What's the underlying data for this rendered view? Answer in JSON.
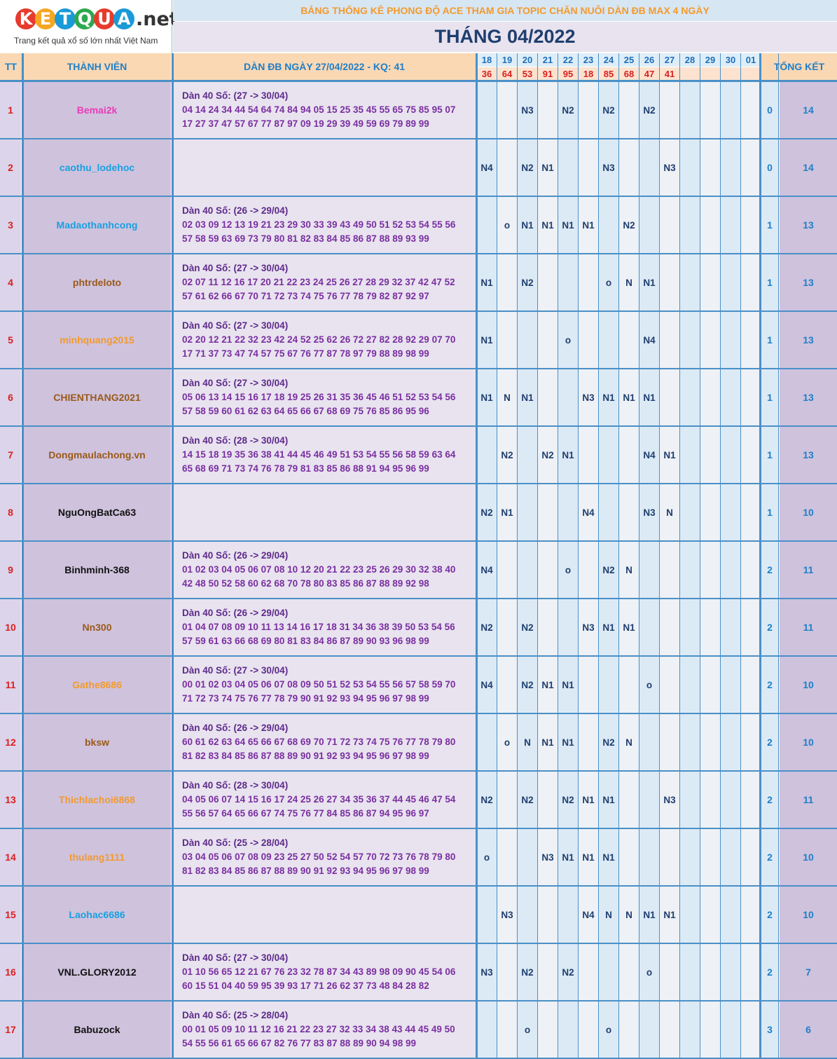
{
  "logo": {
    "letters": [
      "K",
      "E",
      "T",
      "Q",
      "U",
      "A"
    ],
    "letter_colors": [
      "#e63b2e",
      "#f5a623",
      "#1a9ad6",
      "#2fa84f",
      "#e63b2e",
      "#1a9ad6"
    ],
    "suffix": ".net",
    "tagline": "Trang kết quả xổ số lớn nhất Việt Nam"
  },
  "title": "BẢNG THỐNG KÊ PHONG ĐỘ ACE THAM GIA TOPIC CHĂN NUÔI DÀN ĐB MAX 4 NGÀY",
  "month": "THÁNG 04/2022",
  "headers": {
    "tt": "TT",
    "member": "THÀNH VIÊN",
    "dan": "DÀN ĐB NGÀY 27/04/2022 - KQ: 41",
    "summary": "TỔNG KẾT"
  },
  "days": [
    "18",
    "19",
    "20",
    "21",
    "22",
    "23",
    "24",
    "25",
    "26",
    "27",
    "28",
    "29",
    "30",
    "01"
  ],
  "results": [
    "36",
    "64",
    "53",
    "91",
    "95",
    "18",
    "85",
    "68",
    "47",
    "41",
    "",
    "",
    "",
    ""
  ],
  "colors": {
    "accent_blue": "#4a90c8",
    "title_orange": "#f39a2d",
    "month_navy": "#1f3e6e",
    "tt_red": "#d92020",
    "dan_purple": "#7a2fa0"
  },
  "rows": [
    {
      "tt": "1",
      "name": "Bemai2k",
      "name_color": "#e83cb6",
      "dan_head": "Dàn 40 Số: (27 -> 30/04)",
      "dan_line1": "04 14 24 34 44 54 64 74 84 94 05 15 25 35 45 55 65 75 85 95 07",
      "dan_line2": "17 27 37 47 57 67 77 87 97 09 19 29 39 49 59 69 79 89 99",
      "marks": [
        "",
        "",
        "N3",
        "",
        "N2",
        "",
        "N2",
        "",
        "N2",
        "",
        "",
        "",
        "",
        ""
      ],
      "a": "0",
      "b": "14"
    },
    {
      "tt": "2",
      "name": "caothu_lodehoc",
      "name_color": "#1aa0e0",
      "dan_head": "",
      "dan_line1": "",
      "dan_line2": "",
      "marks": [
        "N4",
        "",
        "N2",
        "N1",
        "",
        "",
        "N3",
        "",
        "",
        "N3",
        "",
        "",
        "",
        ""
      ],
      "a": "0",
      "b": "14"
    },
    {
      "tt": "3",
      "name": "Madaothanhcong",
      "name_color": "#1aa0e0",
      "dan_head": "Dàn 40 Số: (26 -> 29/04)",
      "dan_line1": "02 03 09 12 13 19 21 23 29 30 33 39 43 49 50 51 52 53 54 55 56",
      "dan_line2": "57 58 59 63 69 73 79 80 81 82 83 84 85 86 87 88 89 93 99",
      "marks": [
        "",
        "o",
        "N1",
        "N1",
        "N1",
        "N1",
        "",
        "N2",
        "",
        "",
        "",
        "",
        "",
        ""
      ],
      "a": "1",
      "b": "13"
    },
    {
      "tt": "4",
      "name": "phtrdeloto",
      "name_color": "#9a5a1a",
      "dan_head": "Dàn 40 Số: (27 -> 30/04)",
      "dan_line1": "02 07 11 12 16 17 20 21 22 23 24 25 26 27 28 29 32 37 42 47 52",
      "dan_line2": "57 61 62 66 67 70 71 72 73 74 75 76 77 78 79 82 87 92 97",
      "marks": [
        "N1",
        "",
        "N2",
        "",
        "",
        "",
        "o",
        "N",
        "N1",
        "",
        "",
        "",
        "",
        ""
      ],
      "a": "1",
      "b": "13"
    },
    {
      "tt": "5",
      "name": "minhquang2015",
      "name_color": "#f39a2d",
      "dan_head": "Dàn 40 Số: (27 -> 30/04)",
      "dan_line1": "02 20 12 21 22 32 23 42 24 52 25 62 26 72 27 82 28 92 29 07 70",
      "dan_line2": "17 71 37 73 47 74 57 75 67 76 77 87 78 97 79 88 89 98 99",
      "marks": [
        "N1",
        "",
        "",
        "",
        "o",
        "",
        "",
        "",
        "N4",
        "",
        "",
        "",
        "",
        ""
      ],
      "a": "1",
      "b": "13"
    },
    {
      "tt": "6",
      "name": "CHIENTHANG2021",
      "name_color": "#9a5a1a",
      "dan_head": "Dàn 40 Số: (27 -> 30/04)",
      "dan_line1": "05 06 13 14 15 16 17 18 19 25 26 31 35 36 45 46 51 52 53 54 56",
      "dan_line2": "57 58 59 60 61 62 63 64 65 66 67 68 69 75 76 85 86 95 96",
      "marks": [
        "N1",
        "N",
        "N1",
        "",
        "",
        "N3",
        "N1",
        "N1",
        "N1",
        "",
        "",
        "",
        "",
        ""
      ],
      "a": "1",
      "b": "13"
    },
    {
      "tt": "7",
      "name": "Dongmaulachong.vn",
      "name_color": "#9a5a1a",
      "dan_head": "Dàn 40 Số: (28 -> 30/04)",
      "dan_line1": "14 15 18 19 35 36 38 41 44 45 46 49 51 53 54 55 56 58 59 63 64",
      "dan_line2": "65 68 69 71 73 74 76 78 79 81 83 85 86 88 91 94 95 96 99",
      "marks": [
        "",
        "N2",
        "",
        "N2",
        "N1",
        "",
        "",
        "",
        "N4",
        "N1",
        "",
        "",
        "",
        ""
      ],
      "a": "1",
      "b": "13"
    },
    {
      "tt": "8",
      "name": "NguOngBatCa63",
      "name_color": "#111111",
      "dan_head": "",
      "dan_line1": "",
      "dan_line2": "",
      "marks": [
        "N2",
        "N1",
        "",
        "",
        "",
        "N4",
        "",
        "",
        "N3",
        "N",
        "",
        "",
        "",
        ""
      ],
      "a": "1",
      "b": "10"
    },
    {
      "tt": "9",
      "name": "Binhminh-368",
      "name_color": "#111111",
      "dan_head": "Dàn 40 Số: (26 -> 29/04)",
      "dan_line1": "01 02 03 04 05 06 07 08 10 12 20 21 22 23 25 26 29 30 32 38 40",
      "dan_line2": "42 48 50 52 58 60 62 68 70 78 80 83 85 86 87 88 89 92 98",
      "marks": [
        "N4",
        "",
        "",
        "",
        "o",
        "",
        "N2",
        "N",
        "",
        "",
        "",
        "",
        "",
        ""
      ],
      "a": "2",
      "b": "11"
    },
    {
      "tt": "10",
      "name": "Nn300",
      "name_color": "#9a5a1a",
      "dan_head": "Dàn 40 Số: (26 -> 29/04)",
      "dan_line1": "01 04 07 08 09 10 11 13 14 16 17 18 31 34 36 38 39 50 53 54 56",
      "dan_line2": "57 59 61 63 66 68 69 80 81 83 84 86 87 89 90 93 96 98 99",
      "marks": [
        "N2",
        "",
        "N2",
        "",
        "",
        "N3",
        "N1",
        "N1",
        "",
        "",
        "",
        "",
        "",
        ""
      ],
      "a": "2",
      "b": "11"
    },
    {
      "tt": "11",
      "name": "Gathe8686",
      "name_color": "#f39a2d",
      "dan_head": "Dàn 40 Số: (27 -> 30/04)",
      "dan_line1": "00 01 02 03 04 05 06 07 08 09 50 51 52 53 54 55 56 57 58 59 70",
      "dan_line2": "71 72 73 74 75 76 77 78 79 90 91 92 93 94 95 96 97 98 99",
      "marks": [
        "N4",
        "",
        "N2",
        "N1",
        "N1",
        "",
        "",
        "",
        "o",
        "",
        "",
        "",
        "",
        ""
      ],
      "a": "2",
      "b": "10"
    },
    {
      "tt": "12",
      "name": "bksw",
      "name_color": "#9a5a1a",
      "dan_head": "Dàn 40 Số: (26 -> 29/04)",
      "dan_line1": "60 61 62 63 64 65 66 67 68 69 70 71 72 73 74 75 76 77 78 79 80",
      "dan_line2": "81 82 83 84 85 86 87 88 89 90 91 92 93 94 95 96 97 98 99",
      "marks": [
        "",
        "o",
        "N",
        "N1",
        "N1",
        "",
        "N2",
        "N",
        "",
        "",
        "",
        "",
        "",
        ""
      ],
      "a": "2",
      "b": "10"
    },
    {
      "tt": "13",
      "name": "Thichlachoi6868",
      "name_color": "#f39a2d",
      "dan_head": "Dàn 40 Số: (28 -> 30/04)",
      "dan_line1": "04 05 06 07 14 15 16 17 24 25 26 27 34 35 36 37 44 45 46 47 54",
      "dan_line2": "55 56 57 64 65 66 67 74 75 76 77 84 85 86 87 94 95 96 97",
      "marks": [
        "N2",
        "",
        "N2",
        "",
        "N2",
        "N1",
        "N1",
        "",
        "",
        "N3",
        "",
        "",
        "",
        ""
      ],
      "a": "2",
      "b": "11"
    },
    {
      "tt": "14",
      "name": "thulang1111",
      "name_color": "#f39a2d",
      "dan_head": "Dàn 40 Số: (25 -> 28/04)",
      "dan_line1": "03 04 05 06 07 08 09 23 25 27 50 52 54 57 70 72 73 76 78 79 80",
      "dan_line2": "81 82 83 84 85 86 87 88 89 90 91 92 93 94 95 96 97 98 99",
      "marks": [
        "o",
        "",
        "",
        "N3",
        "N1",
        "N1",
        "N1",
        "",
        "",
        "",
        "",
        "",
        "",
        ""
      ],
      "a": "2",
      "b": "10"
    },
    {
      "tt": "15",
      "name": "Laohac6686",
      "name_color": "#1aa0e0",
      "dan_head": "",
      "dan_line1": "",
      "dan_line2": "",
      "marks": [
        "",
        "N3",
        "",
        "",
        "",
        "N4",
        "N",
        "N",
        "N1",
        "N1",
        "",
        "",
        "",
        ""
      ],
      "a": "2",
      "b": "10"
    },
    {
      "tt": "16",
      "name": "VNL.GLORY2012",
      "name_color": "#111111",
      "dan_head": "Dàn 40 Số: (27 -> 30/04)",
      "dan_line1": "01 10 56 65 12 21 67 76 23 32 78 87 34 43 89 98 09 90 45 54 06",
      "dan_line2": "60 15 51 04 40 59 95 39 93 17 71 26 62 37 73 48 84 28 82",
      "marks": [
        "N3",
        "",
        "N2",
        "",
        "N2",
        "",
        "",
        "",
        "o",
        "",
        "",
        "",
        "",
        ""
      ],
      "a": "2",
      "b": "7"
    },
    {
      "tt": "17",
      "name": "Babuzock",
      "name_color": "#111111",
      "dan_head": "Dàn 40 Số: (25 -> 28/04)",
      "dan_line1": "00 01 05 09 10 11 12 16 21 22 23 27 32 33 34 38 43 44 45 49 50",
      "dan_line2": "54 55 56 61 65 66 67 82 76 77 83 87 88 89 90 94 98 99",
      "marks": [
        "",
        "",
        "o",
        "",
        "",
        "",
        "o",
        "",
        "",
        "",
        "",
        "",
        "",
        ""
      ],
      "a": "3",
      "b": "6"
    }
  ]
}
